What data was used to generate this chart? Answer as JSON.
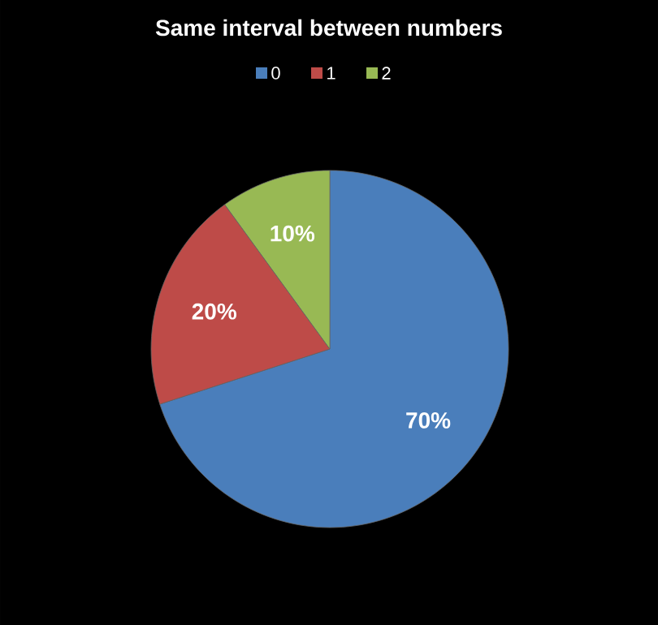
{
  "chart_data": {
    "type": "pie",
    "title": "Same interval between numbers",
    "categories": [
      "0",
      "1",
      "2"
    ],
    "values": [
      70,
      20,
      10
    ],
    "colors": [
      "#4a7ebb",
      "#be4b48",
      "#98b954"
    ],
    "value_labels": [
      "70%",
      "20%",
      "10%"
    ],
    "legend": "top"
  }
}
